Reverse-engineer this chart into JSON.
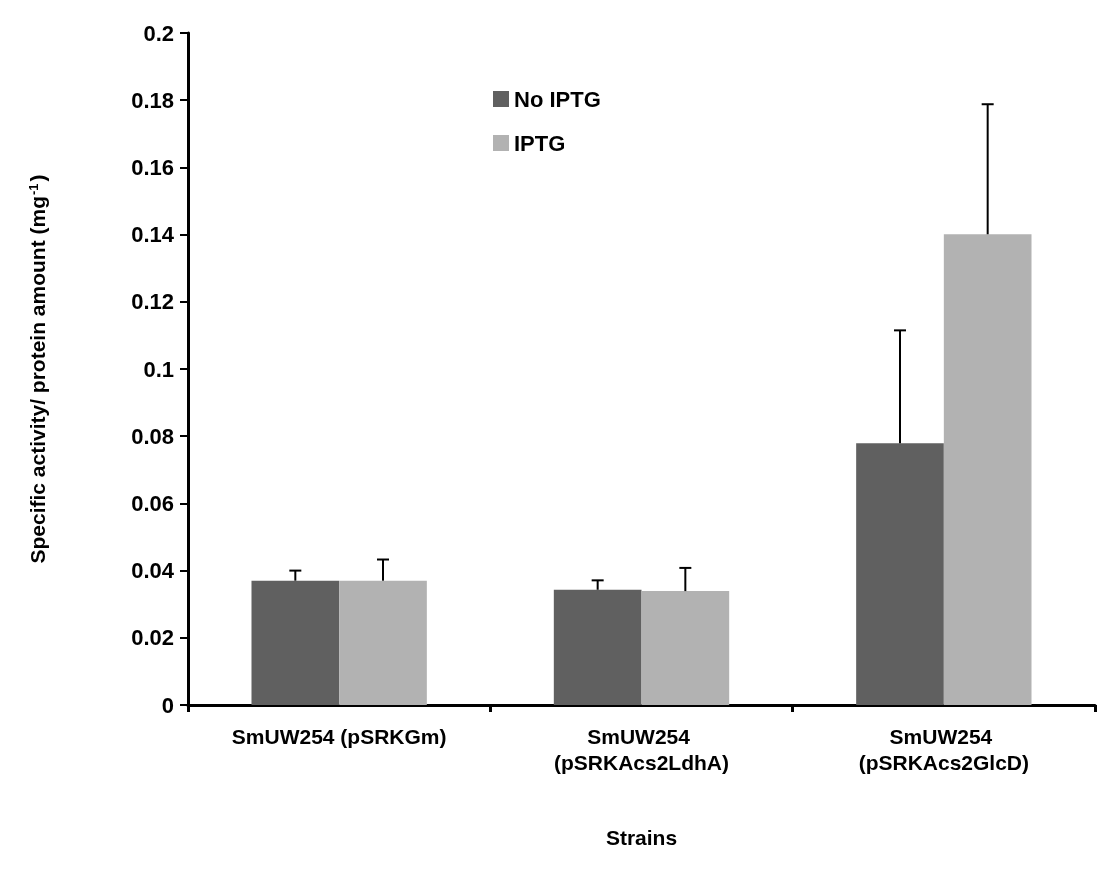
{
  "chart_data": {
    "type": "bar",
    "xlabel": "Strains",
    "ylabel": "Specific activity/ protein amount (mg$^{-1}$)",
    "categories": [
      "SmUW254 (pSRKGm)",
      "SmUW254 (pSRKAcs2LdhA)",
      "SmUW254 (pSRKAcs2GlcD)"
    ],
    "series": [
      {
        "name": "No IPTG",
        "color": "#606060",
        "values": [
          0.037,
          0.0343,
          0.0779
        ],
        "errors": [
          0.003,
          0.0028,
          0.0336
        ]
      },
      {
        "name": "IPTG",
        "color": "#b2b2b2",
        "values": [
          0.037,
          0.0339,
          0.1401
        ],
        "errors": [
          0.0063,
          0.0069,
          0.0387
        ]
      }
    ],
    "ylim": [
      0,
      0.2
    ],
    "yticks": [
      0,
      0.02,
      0.04,
      0.06,
      0.08,
      0.1,
      0.12,
      0.14,
      0.16,
      0.18,
      0.2
    ],
    "grid": false,
    "legend": "top"
  }
}
